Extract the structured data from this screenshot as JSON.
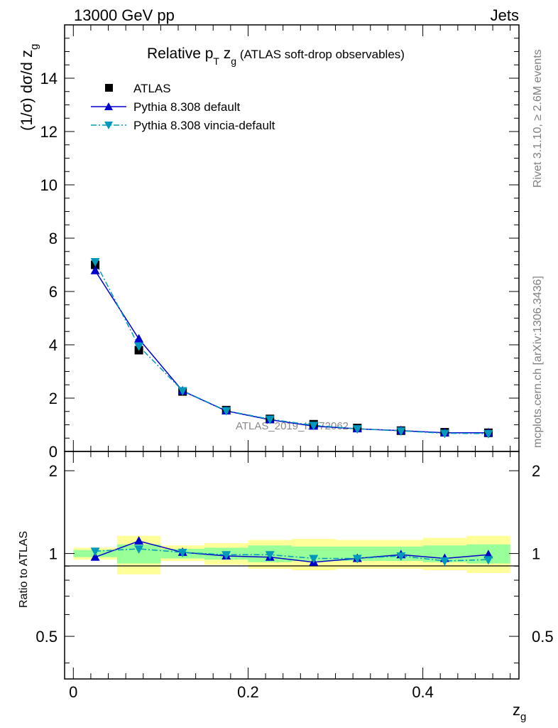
{
  "header": {
    "left": "13000 GeV pp",
    "right": "Jets"
  },
  "sidebar": {
    "rivet": "Rivet 3.1.10, ≥ 2.6M events",
    "mcplots": "mcplots.cern.ch [arXiv:1306.3436]"
  },
  "chart_data": [
    {
      "type": "scatter",
      "panel": "main",
      "title_main": "Relative p",
      "title_sub1": "T",
      "title_mid": " z",
      "title_sub2": "g",
      "title_rest": " (ATLAS soft-drop observables)",
      "ylabel": "(1/σ) dσ/d z",
      "ylabel_sub": "g",
      "watermark": "ATLAS_2019_I1772062",
      "xlim": [
        -0.01,
        0.51
      ],
      "ylim": [
        0,
        16
      ],
      "y_ticks": [
        "0",
        "2",
        "4",
        "6",
        "8",
        "10",
        "12",
        "14"
      ],
      "x": [
        0.025,
        0.075,
        0.125,
        0.175,
        0.225,
        0.275,
        0.325,
        0.375,
        0.425,
        0.475
      ],
      "series": [
        {
          "name": "ATLAS",
          "color": "#000000",
          "marker": "square",
          "values": [
            7.0,
            3.8,
            2.25,
            1.55,
            1.22,
            1.02,
            0.88,
            0.78,
            0.72,
            0.7
          ]
        },
        {
          "name": "Pythia 8.308 default",
          "color": "#0000cc",
          "marker": "triangle-up",
          "line": "solid",
          "values": [
            6.78,
            4.22,
            2.27,
            1.52,
            1.19,
            0.95,
            0.85,
            0.78,
            0.7,
            0.7
          ]
        },
        {
          "name": "Pythia 8.308 vincia-default",
          "color": "#0099bb",
          "marker": "triangle-down",
          "line": "dashdot",
          "values": [
            7.12,
            3.95,
            2.28,
            1.53,
            1.21,
            0.98,
            0.85,
            0.77,
            0.68,
            0.67
          ]
        }
      ]
    },
    {
      "type": "scatter",
      "panel": "ratio",
      "ylabel": "Ratio to ATLAS",
      "xlabel": "z",
      "xlabel_sub": "g",
      "xlim": [
        -0.01,
        0.51
      ],
      "ylim": [
        0.35,
        2.35
      ],
      "x_ticks": [
        "0",
        "0.2",
        "0.4"
      ],
      "y_ticks": [
        "0.5",
        "1",
        "2"
      ],
      "x": [
        0.025,
        0.075,
        0.125,
        0.175,
        0.225,
        0.275,
        0.325,
        0.375,
        0.425,
        0.475
      ],
      "bands": {
        "inner": [
          [
            0.97,
            1.03
          ],
          [
            0.92,
            1.08
          ],
          [
            0.96,
            1.04
          ],
          [
            0.95,
            1.05
          ],
          [
            0.93,
            1.07
          ],
          [
            0.94,
            1.06
          ],
          [
            0.94,
            1.06
          ],
          [
            0.94,
            1.06
          ],
          [
            0.93,
            1.07
          ],
          [
            0.92,
            1.08
          ]
        ],
        "outer": [
          [
            0.95,
            1.05
          ],
          [
            0.84,
            1.16
          ],
          [
            0.94,
            1.07
          ],
          [
            0.91,
            1.09
          ],
          [
            0.88,
            1.12
          ],
          [
            0.87,
            1.13
          ],
          [
            0.88,
            1.12
          ],
          [
            0.88,
            1.12
          ],
          [
            0.87,
            1.14
          ],
          [
            0.85,
            1.16
          ]
        ]
      },
      "series": [
        {
          "name": "Pythia 8.308 default",
          "color": "#0000cc",
          "marker": "triangle-up",
          "line": "solid",
          "values": [
            0.97,
            1.11,
            1.01,
            0.98,
            0.97,
            0.93,
            0.96,
            0.99,
            0.96,
            0.99
          ]
        },
        {
          "name": "Pythia 8.308 vincia-default",
          "color": "#0099bb",
          "marker": "triangle-down",
          "line": "dashdot",
          "values": [
            1.02,
            1.04,
            1.01,
            0.99,
            0.99,
            0.96,
            0.96,
            0.98,
            0.94,
            0.95
          ]
        }
      ]
    }
  ]
}
